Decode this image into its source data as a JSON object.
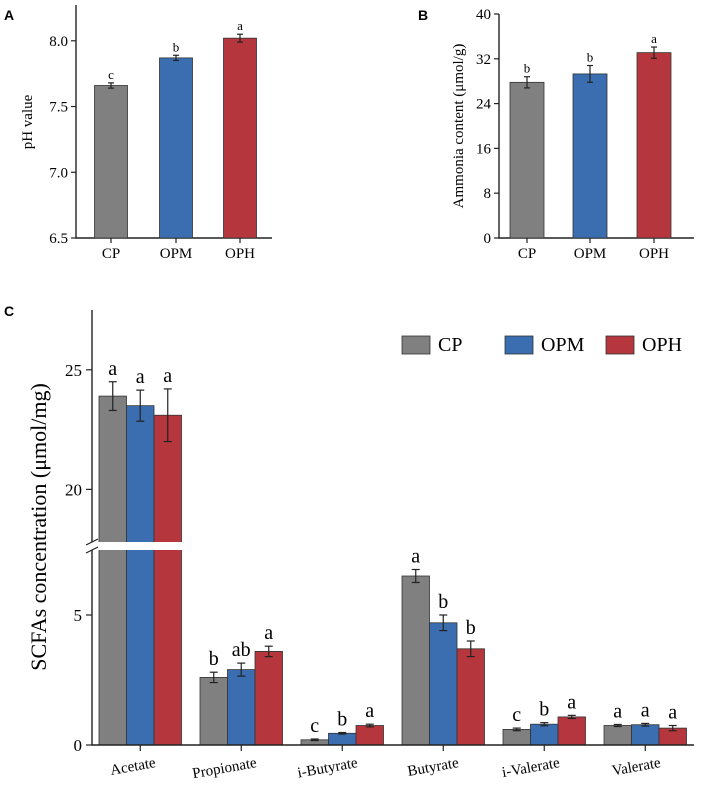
{
  "colors": {
    "CP": "#808080",
    "OPM": "#3b6eb0",
    "OPH": "#b5373d",
    "axis": "#222222"
  },
  "chart_data": [
    {
      "panel": "A",
      "type": "bar",
      "ylabel": "pH value",
      "categories": [
        "CP",
        "OPM",
        "OPH"
      ],
      "values": [
        7.66,
        7.87,
        8.02
      ],
      "errors": [
        0.02,
        0.02,
        0.03
      ],
      "letters": [
        "c",
        "b",
        "a"
      ],
      "ylim": [
        6.5,
        8.2
      ],
      "yticks": [
        6.5,
        7.0,
        7.5,
        8.0
      ],
      "ytick_labels": [
        "6.5",
        "7.0",
        "7.5",
        "8.0"
      ]
    },
    {
      "panel": "B",
      "type": "bar",
      "ylabel": "Ammonia content (μmol/g)",
      "categories": [
        "CP",
        "OPM",
        "OPH"
      ],
      "values": [
        27.8,
        29.3,
        33.1
      ],
      "errors": [
        1.0,
        1.5,
        1.0
      ],
      "letters": [
        "b",
        "b",
        "a"
      ],
      "ylim": [
        0,
        40
      ],
      "yticks": [
        0,
        8,
        16,
        24,
        32,
        40
      ],
      "ytick_labels": [
        "0",
        "8",
        "16",
        "24",
        "32",
        "40"
      ]
    },
    {
      "panel": "C",
      "type": "bar",
      "ylabel": "SCFAs concentration (μmol/mg)",
      "categories": [
        "Acetate",
        "Propionate",
        "i-Butyrate",
        "Butyrate",
        "i-Valerate",
        "Valerate"
      ],
      "series": [
        {
          "name": "CP",
          "values": [
            23.9,
            2.6,
            0.2,
            6.5,
            0.6,
            0.75
          ],
          "errors": [
            0.6,
            0.2,
            0.03,
            0.25,
            0.05,
            0.04
          ],
          "letters": [
            "a",
            "b",
            "c",
            "a",
            "c",
            "a"
          ]
        },
        {
          "name": "OPM",
          "values": [
            23.5,
            2.9,
            0.45,
            4.7,
            0.8,
            0.78
          ],
          "errors": [
            0.65,
            0.25,
            0.03,
            0.3,
            0.06,
            0.05
          ],
          "letters": [
            "a",
            "ab",
            "b",
            "b",
            "b",
            "a"
          ]
        },
        {
          "name": "OPH",
          "values": [
            23.1,
            3.6,
            0.75,
            3.7,
            1.08,
            0.65
          ],
          "errors": [
            1.1,
            0.2,
            0.05,
            0.3,
            0.06,
            0.1
          ],
          "letters": [
            "a",
            "a",
            "a",
            "b",
            "a",
            "a"
          ]
        }
      ],
      "axis_break": [
        7.5,
        17.8
      ],
      "ylim": [
        0,
        27.5
      ],
      "yticks": [
        0,
        5,
        20,
        25
      ],
      "ytick_labels": [
        "0",
        "5",
        "20",
        "25"
      ],
      "legend_position": "top-right"
    }
  ]
}
